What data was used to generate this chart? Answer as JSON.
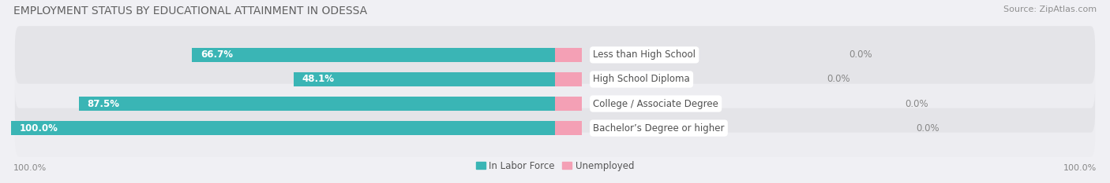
{
  "title": "EMPLOYMENT STATUS BY EDUCATIONAL ATTAINMENT IN ODESSA",
  "source": "Source: ZipAtlas.com",
  "categories": [
    "Less than High School",
    "High School Diploma",
    "College / Associate Degree",
    "Bachelor’s Degree or higher"
  ],
  "labor_force_pct": [
    66.7,
    48.1,
    87.5,
    100.0
  ],
  "unemployed_pct": [
    0.0,
    0.0,
    0.0,
    0.0
  ],
  "labor_force_color": "#3ab5b5",
  "unemployed_color": "#f4a0b5",
  "row_bg_light": "#ededf1",
  "row_bg_dark": "#e4e4e8",
  "outer_bg_color": "#f0f0f4",
  "label_fontsize": 8.5,
  "category_fontsize": 8.5,
  "title_fontsize": 10,
  "source_fontsize": 8,
  "legend_fontsize": 8.5,
  "axis_tick_fontsize": 8,
  "bar_height": 0.6,
  "pink_stub_pct": 5.0,
  "left_label": "100.0%",
  "right_label": "100.0%"
}
